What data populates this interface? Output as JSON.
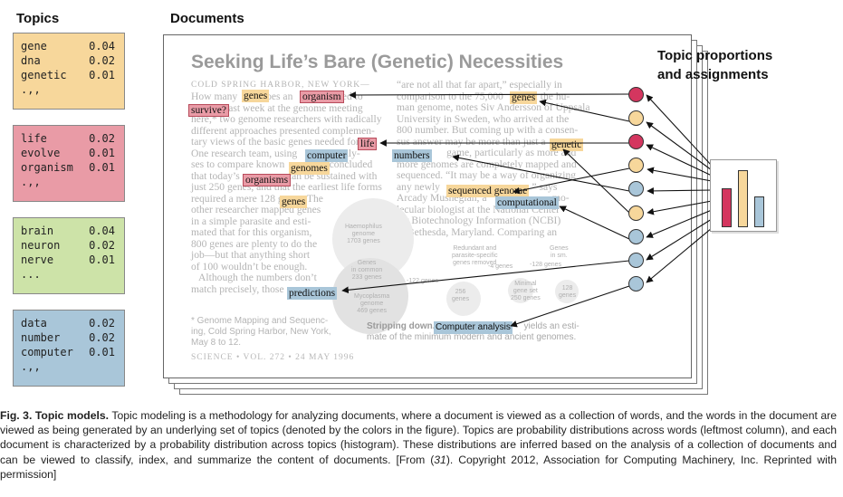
{
  "headers": {
    "topics": "Topics",
    "documents": "Documents",
    "topic_proportions": [
      "Topic proportions",
      "and assignments"
    ]
  },
  "colors": {
    "yellow": "#f7d79b",
    "pink": "#e99ba6",
    "green": "#cde3a8",
    "blue": "#a9c6d9",
    "node_pink": "#d4365f"
  },
  "topics": [
    {
      "color": "#f7d79b",
      "words": [
        {
          "w": "gene",
          "p": "0.04"
        },
        {
          "w": "dna",
          "p": "0.02"
        },
        {
          "w": "genetic",
          "p": "0.01"
        },
        {
          "w": ".,,",
          "p": ""
        }
      ]
    },
    {
      "color": "#e99ba6",
      "words": [
        {
          "w": "life",
          "p": "0.02"
        },
        {
          "w": "evolve",
          "p": "0.01"
        },
        {
          "w": "organism",
          "p": "0.01"
        },
        {
          "w": ".,,",
          "p": ""
        }
      ]
    },
    {
      "color": "#cde3a8",
      "words": [
        {
          "w": "brain",
          "p": "0.04"
        },
        {
          "w": "neuron",
          "p": "0.02"
        },
        {
          "w": "nerve",
          "p": "0.01"
        },
        {
          "w": "...",
          "p": ""
        }
      ]
    },
    {
      "color": "#a9c6d9",
      "words": [
        {
          "w": "data",
          "p": "0.02"
        },
        {
          "w": "number",
          "p": "0.02"
        },
        {
          "w": "computer",
          "p": "0.01"
        },
        {
          "w": ".,,",
          "p": ""
        }
      ]
    }
  ],
  "document": {
    "title": "Seeking Life’s Bare (Genetic) Necessities",
    "dateline": "COLD SPRING HARBOR, NEW YORK—",
    "col1": "How many         does an               need to\n         ? Last week at the genome meeting\nhere,* two genome researchers with radically\ndifferent approaches presented complemen-\ntary views of the basic genes needed for    .\nOne research team, using              analy-\nses to compare known                 concluded\nthat today’s                  can be sustained with\njust 250 genes, and that the earliest life forms\nrequired a mere 128 genes. The\nother researcher mapped genes\nin a simple parasite and esti-\nmated that for this organism,\n800 genes are plenty to do the\njob—but that anything short\nof 100 wouldn’t be enough.\n   Although the numbers don’t\nmatch precisely, those",
    "col2": "“are not all that far apart,” especially in\ncomparison to the 75,000          in the hu-\nman genome, notes Siv Andersson of Uppsala\nUniversity in Sweden, who arrived at the\n800 number. But coming up with a consen-\nsus answer may be more than just a         \n                   game, particularly as more and\nmore genomes are completely mapped and\nsequenced. “It may be a way of organizing\nany newly                                   ” says\nArcady Mushegian, a                         mo-\nlecular biologist at the National Center\nfor Biotechnology Information (NCBI)\nin Bethesda, Maryland. Comparing an",
    "footnote": "* Genome Mapping and Sequenc-\ning, Cold Spring Harbor, New York,\nMay 8 to 12.",
    "footer": "SCIENCE • VOL. 272 • 24 MAY 1996",
    "strip_bold": "Stripping down.",
    "strip_rest": "yields an esti-",
    "strip_line2": "mate of the minimum modern and ancient genomes.",
    "graphic_labels": {
      "haemophilus": "Haemophilus\ngenome\n1703 genes",
      "mycoplasma": "Mycoplasma\ngenome\n469 genes",
      "common": "Genes\nin common\n233 genes",
      "g122": "-122 genes",
      "g256": "256\ngenes",
      "g128": "128\ngenes",
      "ancestral": "Minimal\ngene set\n250 genes",
      "redundant": "Redundant and\nparasite-specific\ngenes removed",
      "g4": "-4 genes",
      "g128b": "-128 genes",
      "gsm": "Genes\nin sm."
    },
    "highlights": {
      "genes1": "genes",
      "organism1": "organism",
      "survive": "survive?",
      "life": "life",
      "computer": "computer",
      "genomes": "genomes",
      "organisms": "organisms",
      "genes2": "genes",
      "predictions": "predictions",
      "genes3": "genes",
      "genetic": "genetic",
      "numbers": "numbers",
      "sequenced_genome": "sequenced genome",
      "computational": "computational",
      "computer_analysis": "Computer analysis"
    }
  },
  "nodes": [
    "#d4365f",
    "#f7d79b",
    "#d4365f",
    "#f7d79b",
    "#a9c6d9",
    "#f7d79b",
    "#a9c6d9",
    "#a9c6d9",
    "#a9c6d9"
  ],
  "chart_data": {
    "type": "bar",
    "categories": [
      "",
      "",
      ""
    ],
    "values": [
      0.31,
      0.45,
      0.24
    ],
    "colors": [
      "#d4365f",
      "#f7d79b",
      "#a9c6d9"
    ],
    "ylim": [
      0,
      0.5
    ]
  },
  "caption": {
    "label": "Fig. 3. Topic models.",
    "text": " Topic modeling is a methodology for analyzing documents, where a document is viewed as a collection of words, and the words in the document are viewed as being generated by an underlying set of topics (denoted by the colors in the figure). Topics are probability distributions across words (leftmost column), and each document is characterized by a probability distribution across topics (histogram). These distributions are inferred based on the analysis of a collection of documents and can be viewed to classify, index, and summarize the content of documents. [From (",
    "ref": "31",
    "text2": "). Copyright 2012, Association for Computing Machinery, Inc. Reprinted with permission]"
  }
}
